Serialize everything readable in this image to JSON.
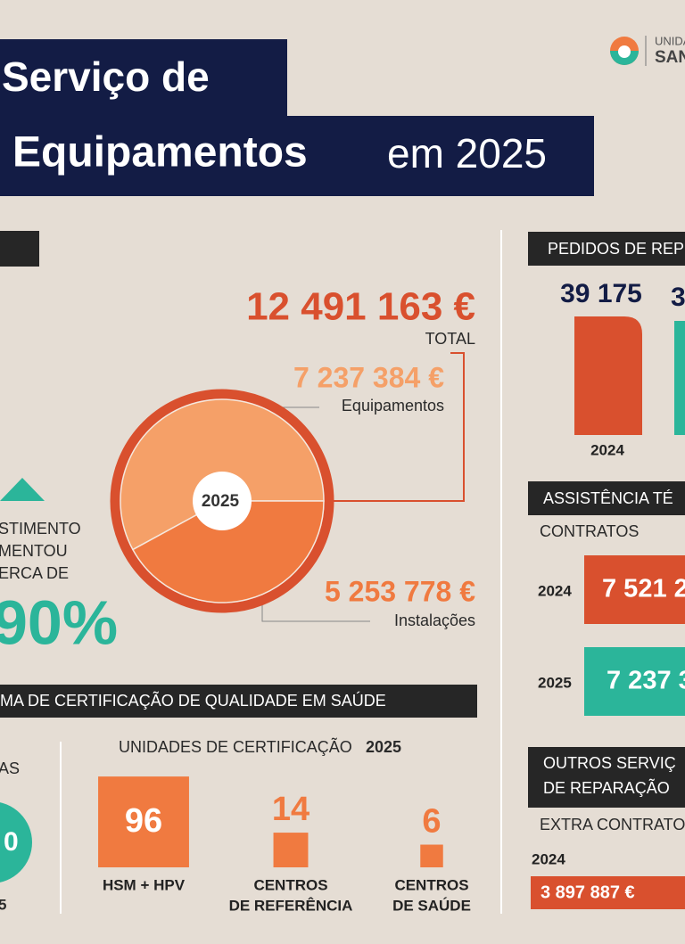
{
  "header": {
    "title_line1": "Serviço de",
    "title_bold": "Equipamentos",
    "title_rest": "em 2025",
    "logo_line1": "UNIDA",
    "logo_line2": "SAN"
  },
  "investment": {
    "total": "12 491 163 €",
    "total_label": "TOTAL",
    "pie": {
      "center_label": "2025",
      "values": [
        7237384,
        5253778
      ],
      "value_labels": [
        "7 237 384 €",
        "5 253 778 €"
      ],
      "labels": [
        "Equipamentos",
        "Instalações"
      ],
      "colors": [
        "#f5a068",
        "#f07a40"
      ]
    },
    "growth_lines": [
      "STIMENTO",
      "MENTOU",
      "ERCA DE"
    ],
    "growth_value": "90%"
  },
  "certification": {
    "header": "MA DE CERTIFICAÇÃO DE QUALIDADE EM SAÚDE",
    "left_label": "AS",
    "left_circle": "0",
    "left_year": "5",
    "units_title": "UNIDADES DE CERTIFICAÇÃO",
    "units_year": "2025",
    "units": [
      {
        "value": 96,
        "label_lines": [
          "HSM + HPV"
        ]
      },
      {
        "value": 14,
        "label_lines": [
          "CENTROS",
          "DE REFERÊNCIA"
        ]
      },
      {
        "value": 6,
        "label_lines": [
          "CENTROS",
          "DE SAÚDE"
        ]
      }
    ]
  },
  "repairs": {
    "header": "PEDIDOS DE REP",
    "value_2024": "39 175",
    "value_next": "3",
    "year": "2024"
  },
  "assistance": {
    "header": "ASSISTÊNCIA TÉ",
    "subheader": "CONTRATOS",
    "rows": [
      {
        "year": "2024",
        "value": "7 521 2"
      },
      {
        "year": "2025",
        "value": "7 237 3"
      }
    ]
  },
  "other": {
    "header_lines": [
      "OUTROS SERVIÇ",
      "DE REPARAÇÃO"
    ],
    "subheader": "EXTRA CONTRATO",
    "year": "2024",
    "value": "3 897 887 €"
  }
}
